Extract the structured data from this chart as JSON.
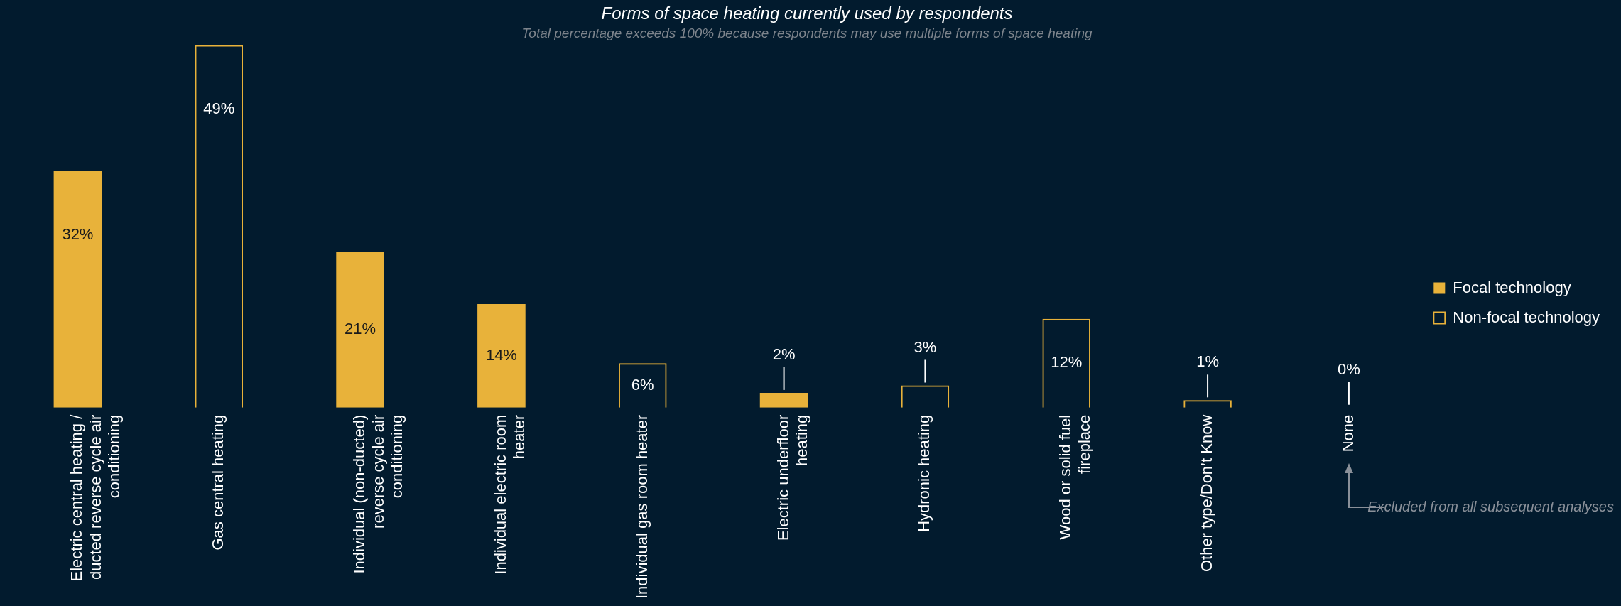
{
  "chart_data": {
    "type": "bar",
    "title": "Forms of space heating currently used by respondents",
    "subtitle": "Total percentage exceeds 100% because respondents may use multiple forms of space heating",
    "categories": [
      "Electric central heating / ducted reverse cycle air conditioning",
      "Gas central heating",
      "Individual (non-ducted) reverse cycle air conditioning",
      "Individual electric room heater",
      "Individual gas room heater",
      "Electric underfloor heating",
      "Hydronic heating",
      "Wood or solid fuel fireplace",
      "Other type/Don’t Know",
      "None"
    ],
    "series": [
      {
        "name": "Focal technology",
        "color": "#e8b23a",
        "values": [
          32,
          null,
          21,
          14,
          null,
          2,
          null,
          null,
          null,
          null
        ],
        "value_labels": [
          "32%",
          null,
          "21%",
          "14%",
          null,
          "2%",
          null,
          null,
          null,
          null
        ]
      },
      {
        "name": "Non-focal technology",
        "color": "#e8b23a",
        "values": [
          null,
          49,
          null,
          null,
          6,
          null,
          3,
          12,
          1,
          0
        ],
        "value_labels": [
          null,
          "49%",
          null,
          null,
          "6%",
          null,
          "3%",
          "12%",
          "1%",
          "0%"
        ]
      }
    ],
    "legend": "right",
    "annotations": [
      "Excluded from all subsequent analyses"
    ]
  }
}
